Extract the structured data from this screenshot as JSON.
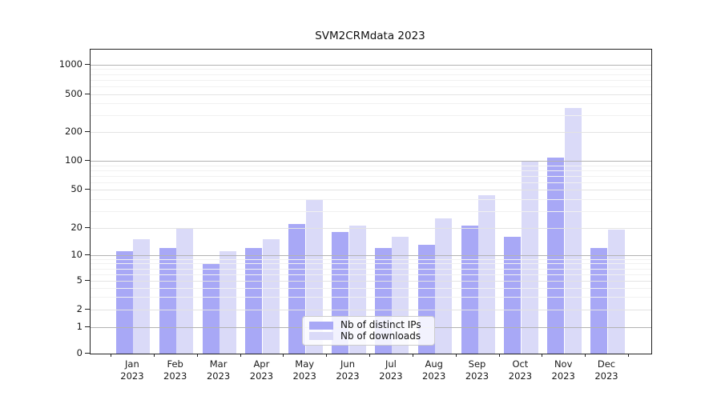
{
  "chart_data": {
    "type": "bar",
    "title": "SVM2CRMdata 2023",
    "categories": [
      "Jan 2023",
      "Feb 2023",
      "Mar 2023",
      "Apr 2023",
      "May 2023",
      "Jun 2023",
      "Jul 2023",
      "Aug 2023",
      "Sep 2023",
      "Oct 2023",
      "Nov 2023",
      "Dec 2023"
    ],
    "series": [
      {
        "name": "Nb of distinct IPs",
        "color": "#a8a8f6",
        "values": [
          11,
          12,
          8,
          12,
          22,
          18,
          12,
          13,
          21,
          16,
          108,
          12
        ]
      },
      {
        "name": "Nb of downloads",
        "color": "#dadaf8",
        "values": [
          15,
          20,
          11,
          15,
          40,
          21,
          16,
          25,
          44,
          100,
          357,
          19
        ]
      }
    ],
    "xlabel": "",
    "ylabel": "",
    "yscale": "log-like (symlog)",
    "y_ticks": [
      0,
      1,
      2,
      5,
      10,
      20,
      50,
      100,
      200,
      500,
      1000
    ],
    "ylim": [
      0,
      1400
    ],
    "grid": "horizontal, major + minor",
    "legend_position": "inside plot, lower center"
  }
}
